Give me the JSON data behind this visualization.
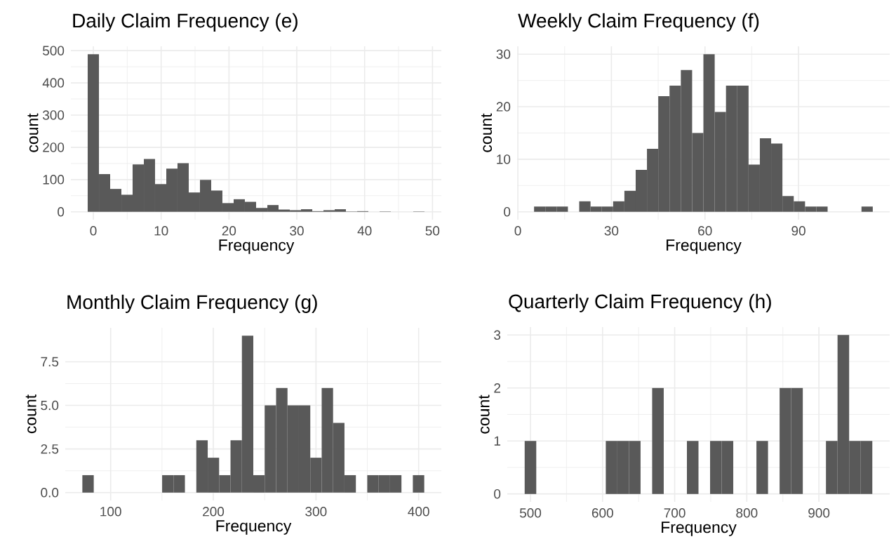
{
  "chart_data": [
    {
      "type": "histogram",
      "title": "Daily Claim Frequency (e)",
      "xlabel": "Frequency",
      "ylabel": "count",
      "color": "#595959",
      "grid": true,
      "bins": [
        -0.83,
        0.83,
        2.48,
        4.14,
        5.79,
        7.45,
        9.1,
        10.76,
        12.41,
        14.07,
        15.72,
        17.38,
        19.03,
        20.69,
        22.34,
        24.0,
        25.66,
        27.31,
        28.97,
        30.62,
        32.28,
        33.93,
        35.59,
        37.24,
        38.9,
        40.55,
        42.21,
        43.86,
        45.52,
        47.17,
        48.83
      ],
      "values": [
        489,
        117,
        71,
        53,
        147,
        164,
        86,
        134,
        151,
        60,
        99,
        66,
        27,
        39,
        31,
        12,
        21,
        7,
        5,
        8,
        2,
        5,
        8,
        1,
        2,
        0,
        1,
        0,
        0,
        1
      ],
      "xlim": [
        -3.31,
        51.31
      ],
      "xticks": [
        0,
        10,
        20,
        30,
        40,
        50
      ],
      "ylim": [
        -24.45,
        513.45
      ],
      "yticks": [
        0,
        100,
        200,
        300,
        400,
        500
      ]
    },
    {
      "type": "histogram",
      "title": "Weekly Claim Frequency (f)",
      "xlabel": "Frequency",
      "ylabel": "count",
      "color": "#595959",
      "grid": true,
      "bins": [
        5.19,
        8.81,
        12.43,
        16.05,
        19.67,
        23.3,
        26.92,
        30.54,
        34.16,
        37.78,
        41.4,
        45.02,
        48.64,
        52.26,
        55.88,
        59.5,
        63.12,
        66.74,
        70.36,
        73.98,
        77.6,
        81.22,
        84.84,
        88.47,
        92.09,
        95.71,
        99.33,
        102.95,
        106.57,
        110.19,
        113.81
      ],
      "values": [
        1,
        1,
        1,
        0,
        2,
        1,
        1,
        2,
        4,
        8,
        12,
        22,
        24,
        27,
        15,
        30,
        19,
        24,
        24,
        9,
        14,
        13,
        3,
        2,
        1,
        1,
        0,
        0,
        0,
        1
      ],
      "xlim": [
        -0.24,
        119.24
      ],
      "xticks": [
        0,
        30,
        60,
        90
      ],
      "ylim": [
        -1.5,
        31.5
      ],
      "yticks": [
        0,
        10,
        20,
        30
      ]
    },
    {
      "type": "histogram",
      "title": "Monthly Claim Frequency (g)",
      "xlabel": "Frequency",
      "ylabel": "count",
      "color": "#595959",
      "grid": true,
      "bins": [
        72.45,
        83.55,
        94.65,
        105.75,
        116.85,
        127.95,
        139.05,
        150.15,
        161.25,
        172.35,
        183.45,
        194.55,
        205.65,
        216.75,
        227.85,
        238.95,
        250.05,
        261.15,
        272.25,
        283.35,
        294.45,
        305.55,
        316.65,
        327.75,
        338.85,
        349.95,
        361.05,
        372.15,
        383.25,
        394.35,
        405.45
      ],
      "values": [
        1,
        0,
        0,
        0,
        0,
        0,
        0,
        1,
        1,
        0,
        3,
        2,
        1,
        3,
        9,
        1,
        5,
        6,
        5,
        5,
        2,
        6,
        4,
        1,
        0,
        1,
        1,
        1,
        0,
        1
      ],
      "xlim": [
        55.8,
        422.1
      ],
      "xticks": [
        100,
        200,
        300,
        400
      ],
      "ylim": [
        -0.45,
        9.45
      ],
      "yticks": [
        {
          "value": 0,
          "label": "0.0"
        },
        {
          "value": 2.5,
          "label": "2.5"
        },
        {
          "value": 5,
          "label": "5.0"
        },
        {
          "value": 7.5,
          "label": "7.5"
        }
      ]
    },
    {
      "type": "histogram",
      "title": "Quarterly Claim Frequency (h)",
      "xlabel": "Frequency",
      "ylabel": "count",
      "color": "#595959",
      "grid": true,
      "bins": [
        491.97,
        508.04,
        524.11,
        540.18,
        556.25,
        572.32,
        588.39,
        604.46,
        620.53,
        636.6,
        652.67,
        668.74,
        684.81,
        700.88,
        716.95,
        733.02,
        749.09,
        765.16,
        781.23,
        797.3,
        813.37,
        829.44,
        845.51,
        861.58,
        877.65,
        893.72,
        909.79,
        925.86,
        941.93,
        958.0,
        974.07
      ],
      "values": [
        1,
        0,
        0,
        0,
        0,
        0,
        0,
        1,
        1,
        1,
        0,
        2,
        0,
        0,
        1,
        0,
        1,
        1,
        0,
        0,
        1,
        0,
        2,
        2,
        0,
        0,
        1,
        3,
        1,
        1
      ],
      "xlim": [
        467.87,
        998.17
      ],
      "xticks": [
        500,
        600,
        700,
        800,
        900
      ],
      "ylim": [
        -0.15,
        3.15
      ],
      "yticks": [
        0,
        1,
        2,
        3
      ]
    }
  ]
}
